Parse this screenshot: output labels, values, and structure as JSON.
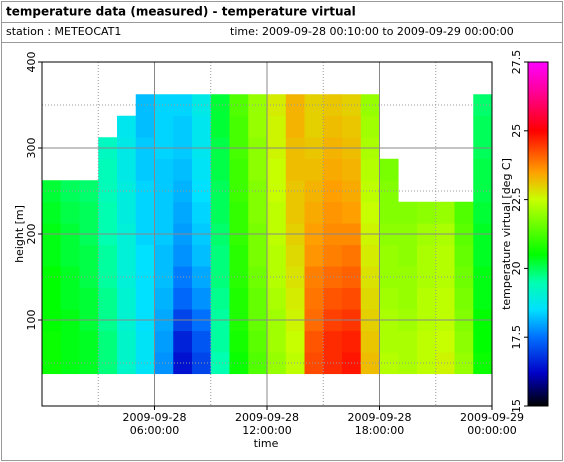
{
  "chart_data": {
    "type": "heatmap",
    "title": "temperature data (measured) - temperature virtual",
    "station": "station : METEOCAT1",
    "time_range": "time: 2009-09-28 00:10:00 to 2009-09-29 00:00:00",
    "xlabel": "time",
    "ylabel": "height [m]",
    "colorbar_label": "temperature virtual [deg C]",
    "x": [
      0.5,
      1.5,
      2.5,
      3.5,
      4.5,
      5.5,
      6.5,
      7.5,
      8.5,
      9.5,
      10.5,
      11.5,
      12.5,
      13.5,
      14.5,
      15.5,
      16.5,
      17.5,
      18.5,
      19.5,
      20.5,
      21.5,
      22.5,
      23.5
    ],
    "y": [
      50,
      75,
      100,
      125,
      150,
      175,
      200,
      225,
      250,
      275,
      300,
      325,
      350
    ],
    "cell_width": 1,
    "cell_height": 25,
    "values": [
      [
        20.6,
        20.4,
        20.3,
        19.8,
        19.2,
        18.6,
        17.8,
        16.4,
        17.0,
        19.5,
        20.6,
        21.3,
        22.0,
        22.4,
        24.3,
        24.6,
        24.8,
        23.2,
        22.3,
        22.2,
        22.4,
        22.6,
        22.0,
        20.6
      ],
      [
        20.6,
        20.4,
        20.3,
        19.8,
        19.2,
        18.6,
        17.9,
        16.6,
        17.2,
        19.6,
        20.7,
        21.4,
        22.1,
        22.5,
        24.2,
        24.6,
        24.7,
        23.1,
        22.2,
        22.2,
        22.4,
        22.5,
        21.9,
        20.5
      ],
      [
        20.5,
        20.4,
        20.2,
        19.7,
        19.1,
        18.5,
        18.0,
        17.0,
        17.5,
        19.6,
        20.8,
        21.5,
        22.1,
        22.6,
        24.0,
        24.4,
        24.5,
        23.0,
        22.2,
        22.1,
        22.3,
        22.4,
        21.8,
        20.5
      ],
      [
        20.5,
        20.3,
        20.2,
        19.7,
        19.1,
        18.5,
        18.1,
        17.4,
        17.8,
        19.7,
        20.8,
        21.5,
        22.2,
        22.7,
        23.9,
        24.2,
        24.3,
        22.9,
        22.1,
        22.0,
        22.3,
        22.4,
        21.7,
        20.4
      ],
      [
        20.5,
        20.3,
        20.1,
        19.6,
        19.0,
        18.5,
        18.2,
        17.6,
        18.0,
        19.8,
        20.9,
        21.6,
        22.3,
        22.8,
        23.8,
        24.0,
        24.1,
        22.8,
        22.0,
        22.0,
        22.2,
        22.3,
        21.6,
        20.4
      ],
      [
        20.4,
        20.2,
        20.1,
        19.6,
        19.0,
        18.5,
        18.2,
        17.8,
        18.2,
        19.8,
        20.9,
        21.7,
        22.3,
        22.9,
        23.6,
        23.8,
        23.9,
        22.7,
        22.0,
        21.9,
        22.2,
        22.3,
        21.5,
        20.3
      ],
      [
        20.4,
        20.2,
        20.0,
        19.5,
        19.0,
        18.4,
        18.3,
        17.9,
        18.3,
        19.9,
        21.0,
        21.7,
        22.4,
        23.0,
        23.5,
        23.7,
        23.7,
        22.6,
        21.9,
        21.9,
        22.1,
        22.2,
        21.4,
        20.3
      ],
      [
        20.3,
        20.1,
        20.0,
        19.5,
        18.9,
        18.4,
        18.3,
        18.0,
        18.4,
        20.0,
        21.0,
        21.8,
        22.4,
        23.1,
        23.4,
        23.6,
        23.5,
        22.5,
        21.8,
        21.8,
        21.9,
        22.0,
        21.3,
        20.2
      ],
      [
        20.2,
        20.0,
        19.9,
        19.4,
        18.9,
        18.4,
        18.3,
        18.1,
        18.5,
        20.0,
        21.1,
        21.8,
        22.5,
        23.1,
        23.3,
        23.5,
        23.4,
        22.4,
        21.8,
        null,
        null,
        null,
        null,
        20.1
      ],
      [
        null,
        null,
        null,
        19.4,
        18.8,
        18.3,
        18.3,
        18.2,
        18.6,
        20.1,
        21.1,
        21.9,
        22.5,
        23.2,
        23.2,
        23.4,
        23.3,
        22.3,
        21.7,
        null,
        null,
        null,
        null,
        20.1
      ],
      [
        null,
        null,
        null,
        19.3,
        18.8,
        18.3,
        18.4,
        18.3,
        18.7,
        20.1,
        21.2,
        21.9,
        22.6,
        23.2,
        23.1,
        23.3,
        23.2,
        22.2,
        null,
        null,
        null,
        null,
        null,
        20.0
      ],
      [
        null,
        null,
        null,
        null,
        18.7,
        18.2,
        18.4,
        18.3,
        18.7,
        20.2,
        21.2,
        22.0,
        22.6,
        23.3,
        23.0,
        23.2,
        23.1,
        22.1,
        null,
        null,
        null,
        null,
        null,
        20.0
      ],
      [
        null,
        null,
        null,
        null,
        null,
        18.2,
        18.4,
        18.4,
        18.8,
        20.2,
        21.3,
        22.0,
        22.7,
        23.3,
        23.0,
        23.1,
        23.0,
        22.0,
        null,
        null,
        null,
        null,
        null,
        19.9
      ]
    ],
    "xlim": [
      0,
      24
    ],
    "xticks": [
      {
        "value": 6,
        "label": "2009-09-28 06:00:00"
      },
      {
        "value": 12,
        "label": "2009-09-28 12:00:00"
      },
      {
        "value": 18,
        "label": "2009-09-28 18:00:00"
      },
      {
        "value": 24,
        "label": "2009-09-29 00:00:00"
      }
    ],
    "xminor": [
      3,
      9,
      15,
      21
    ],
    "ylim": [
      0,
      400
    ],
    "yticks": [
      100,
      200,
      300,
      400
    ],
    "yminor": [
      50,
      150,
      250,
      350
    ],
    "zlim": [
      15,
      27.5
    ],
    "zticks": [
      15,
      17.5,
      20,
      22.5,
      25,
      27.5
    ],
    "colorscale": [
      [
        15,
        "#000000"
      ],
      [
        16.2,
        "#0000c8"
      ],
      [
        17.5,
        "#0070ff"
      ],
      [
        18.5,
        "#00e0ff"
      ],
      [
        19.5,
        "#00ffb0"
      ],
      [
        20.5,
        "#00ff00"
      ],
      [
        22.5,
        "#c8ff00"
      ],
      [
        23.5,
        "#ffa000"
      ],
      [
        25,
        "#ff0000"
      ],
      [
        26.5,
        "#ff00a0"
      ],
      [
        27.5,
        "#ff00ff"
      ]
    ],
    "grid": true
  }
}
